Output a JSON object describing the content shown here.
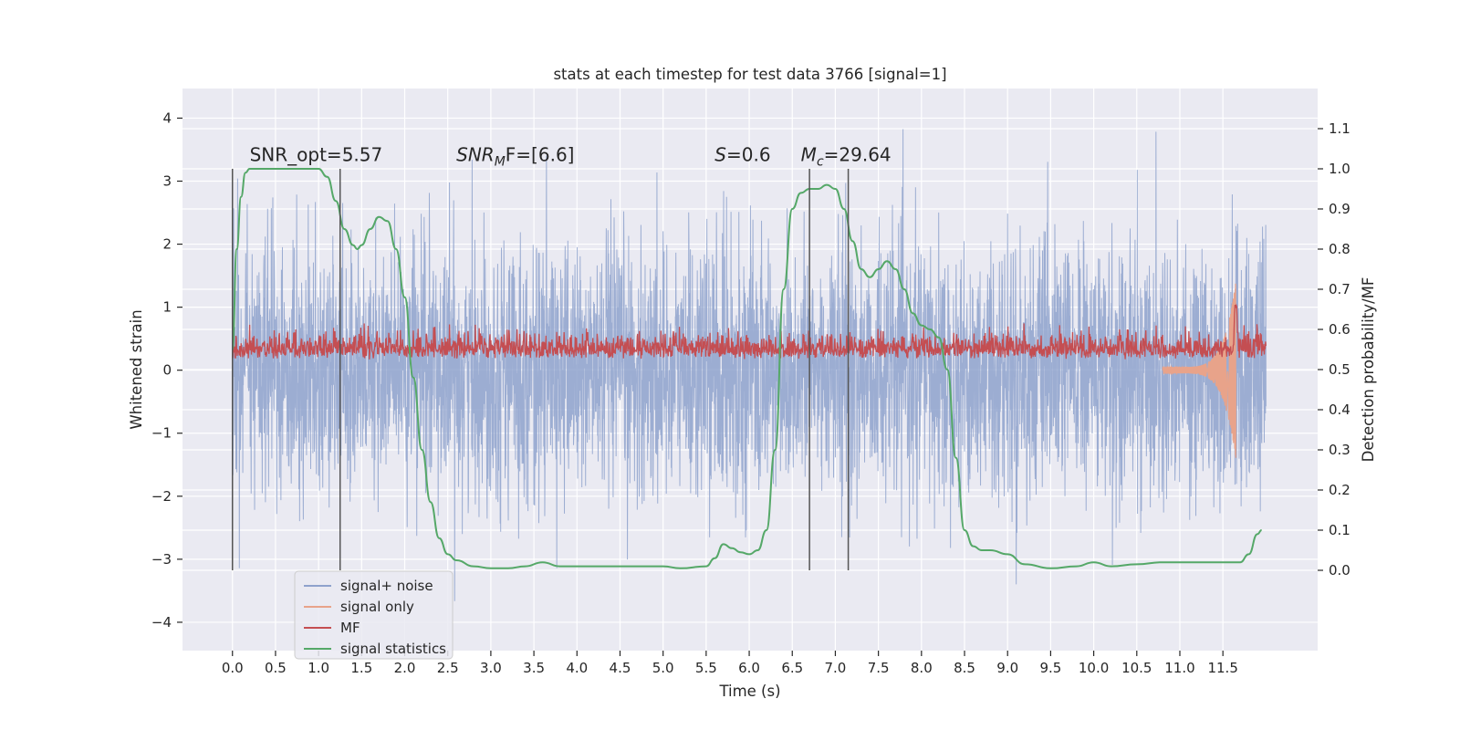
{
  "chart_data": {
    "type": "line",
    "title": "stats at each timestep for test data 3766 [signal=1]",
    "xlabel": "Time (s)",
    "ylabel_left": "Whitened strain",
    "ylabel_right": "Detection probability/MF",
    "xlim": [
      -0.58,
      12.6
    ],
    "ylim_left": [
      -4.45,
      4.47
    ],
    "ylim_right": [
      -0.2,
      1.2
    ],
    "grid": true,
    "legend_position": "lower-left",
    "x_ticks": [
      "0.0",
      "0.5",
      "1.0",
      "1.5",
      "2.0",
      "2.5",
      "3.0",
      "3.5",
      "4.0",
      "4.5",
      "5.0",
      "5.5",
      "6.0",
      "6.5",
      "7.0",
      "7.5",
      "8.0",
      "8.5",
      "9.0",
      "9.5",
      "10.0",
      "10.5",
      "11.0",
      "11.5"
    ],
    "x_tick_values": [
      0,
      0.5,
      1,
      1.5,
      2,
      2.5,
      3,
      3.5,
      4,
      4.5,
      5,
      5.5,
      6,
      6.5,
      7,
      7.5,
      8,
      8.5,
      9,
      9.5,
      10,
      10.5,
      11,
      11.5
    ],
    "y_left_ticks": [
      "−4",
      "−3",
      "−2",
      "−1",
      "0",
      "1",
      "2",
      "3",
      "4"
    ],
    "y_left_tick_values": [
      -4,
      -3,
      -2,
      -1,
      0,
      1,
      2,
      3,
      4
    ],
    "y_right_ticks": [
      "0.0",
      "0.1",
      "0.2",
      "0.3",
      "0.4",
      "0.5",
      "0.6",
      "0.7",
      "0.8",
      "0.9",
      "1.0",
      "1.1"
    ],
    "y_right_tick_values": [
      0,
      0.1,
      0.2,
      0.3,
      0.4,
      0.5,
      0.6,
      0.7,
      0.8,
      0.9,
      1.0,
      1.1
    ],
    "series": [
      {
        "name": "signal+ noise",
        "color": "#8ea2cc",
        "axis": "left",
        "style": "dense-noise",
        "x_range": [
          0,
          12.0
        ]
      },
      {
        "name": "signal only",
        "color": "#e8a38a",
        "axis": "left",
        "style": "chirp",
        "x_range": [
          10.8,
          11.65
        ]
      },
      {
        "name": "MF",
        "color": "#c44e52",
        "axis": "right",
        "style": "dense-noise",
        "x_range": [
          0,
          12.0
        ]
      },
      {
        "name": "signal statistics",
        "color": "#55a868",
        "axis": "right",
        "x": [
          0,
          0.05,
          0.1,
          0.15,
          0.2,
          0.3,
          0.5,
          0.8,
          1.0,
          1.1,
          1.2,
          1.3,
          1.4,
          1.45,
          1.5,
          1.6,
          1.7,
          1.8,
          1.9,
          2.0,
          2.1,
          2.2,
          2.3,
          2.4,
          2.5,
          2.6,
          2.8,
          3.0,
          3.2,
          3.4,
          3.6,
          3.8,
          4.0,
          4.5,
          5.0,
          5.2,
          5.5,
          5.6,
          5.7,
          5.8,
          5.9,
          6.0,
          6.1,
          6.2,
          6.3,
          6.4,
          6.5,
          6.6,
          6.7,
          6.8,
          6.9,
          7.0,
          7.1,
          7.2,
          7.3,
          7.4,
          7.5,
          7.6,
          7.7,
          7.8,
          7.9,
          8.0,
          8.1,
          8.2,
          8.3,
          8.4,
          8.5,
          8.6,
          8.7,
          8.8,
          9.0,
          9.2,
          9.5,
          9.8,
          10.0,
          10.2,
          10.5,
          10.8,
          11.0,
          11.2,
          11.5,
          11.7,
          11.8,
          11.9,
          11.95
        ],
        "y": [
          0.55,
          0.8,
          0.93,
          0.99,
          1.0,
          1.0,
          1.0,
          1.0,
          1.0,
          0.98,
          0.92,
          0.85,
          0.81,
          0.8,
          0.81,
          0.85,
          0.88,
          0.87,
          0.8,
          0.68,
          0.48,
          0.3,
          0.17,
          0.08,
          0.04,
          0.025,
          0.01,
          0.005,
          0.005,
          0.01,
          0.02,
          0.01,
          0.01,
          0.01,
          0.01,
          0.005,
          0.01,
          0.03,
          0.065,
          0.055,
          0.045,
          0.04,
          0.05,
          0.1,
          0.3,
          0.7,
          0.9,
          0.94,
          0.95,
          0.95,
          0.96,
          0.95,
          0.9,
          0.82,
          0.75,
          0.73,
          0.75,
          0.77,
          0.75,
          0.7,
          0.64,
          0.61,
          0.6,
          0.58,
          0.5,
          0.28,
          0.1,
          0.06,
          0.05,
          0.05,
          0.04,
          0.015,
          0.005,
          0.01,
          0.02,
          0.01,
          0.015,
          0.02,
          0.02,
          0.02,
          0.02,
          0.02,
          0.04,
          0.09,
          0.1
        ]
      }
    ],
    "vertical_lines_x": [
      0,
      1.25,
      6.7,
      7.15
    ],
    "annotations": [
      {
        "x": 0.2,
        "y_right": 1.01,
        "text": "SNR_opt=5.57",
        "style": "plain"
      },
      {
        "x": 2.6,
        "y_right": 1.01,
        "text_main": "SNR",
        "text_sub": "M",
        "text_tail": "F=[6.6]",
        "style": "math"
      },
      {
        "x": 5.6,
        "y_right": 1.01,
        "text_main": "S",
        "text_sub": "",
        "text_tail": "=0.6",
        "style": "math"
      },
      {
        "x": 6.6,
        "y_right": 1.01,
        "text_main": "M",
        "text_sub": "c",
        "text_tail": "=29.64",
        "style": "math"
      }
    ]
  },
  "colors": {
    "plot_bg": "#eaeaf2",
    "grid": "#ffffff",
    "vline": "#555555"
  }
}
